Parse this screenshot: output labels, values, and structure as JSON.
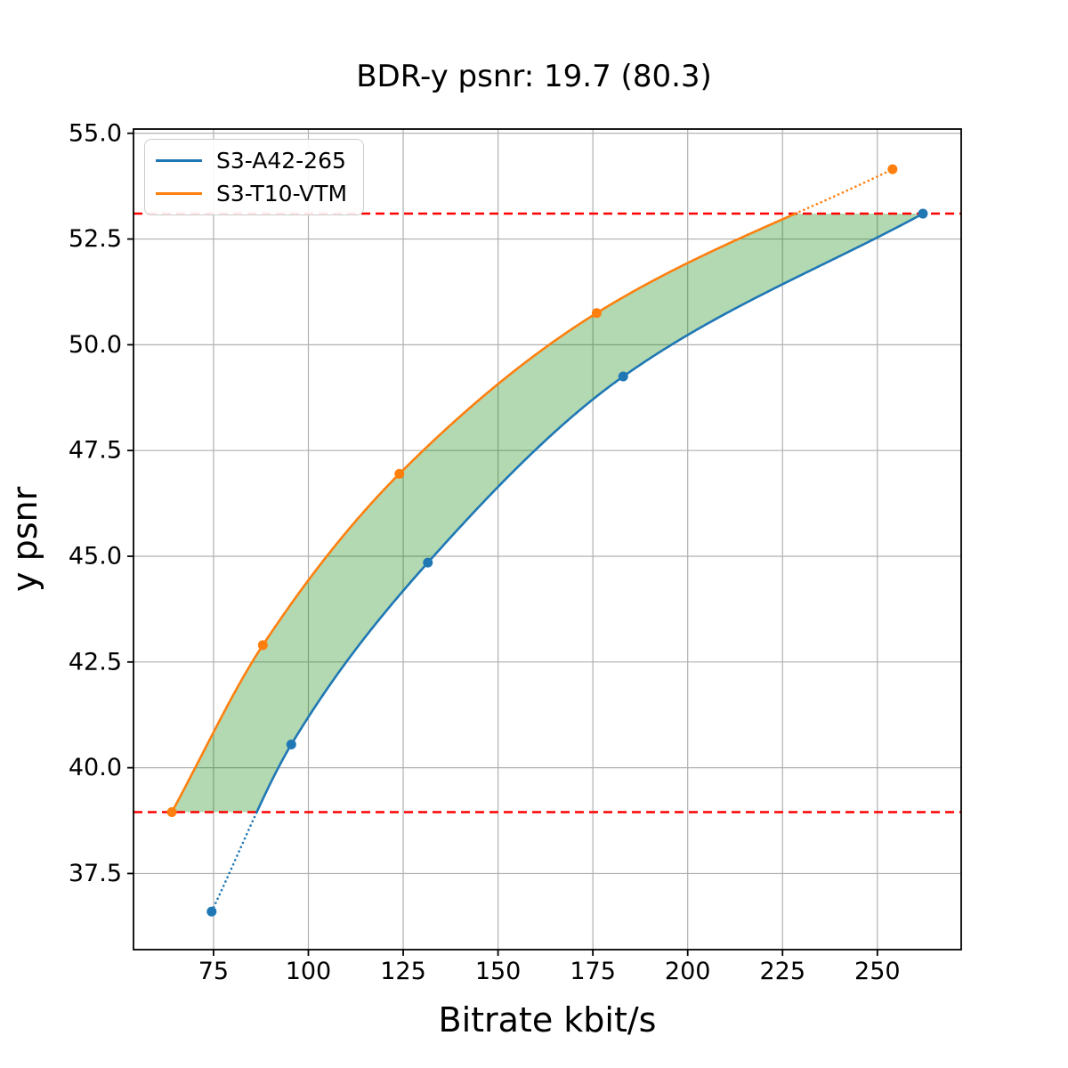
{
  "title": "BDR-y psnr: 19.7 (80.3)",
  "chart_data": {
    "type": "line",
    "title": "BDR-y psnr: 19.7 (80.3)",
    "xlabel": "Bitrate kbit/s",
    "ylabel": "y psnr",
    "xlim": [
      53.9,
      272.1
    ],
    "ylim": [
      35.7,
      55.1
    ],
    "xticks": [
      75,
      100,
      125,
      150,
      175,
      200,
      225,
      250
    ],
    "yticks": [
      37.5,
      40.0,
      42.5,
      45.0,
      47.5,
      50.0,
      52.5,
      55.0
    ],
    "grid": true,
    "grid_color": "#b0b0b0",
    "background": "#ffffff",
    "legend_position": "upper-left",
    "series": [
      {
        "name": "S3-A42-265",
        "color": "#1f77b4",
        "x": [
          74.5,
          95.5,
          131.5,
          183.0,
          262.0
        ],
        "y": [
          36.6,
          40.55,
          44.85,
          49.25,
          53.1
        ]
      },
      {
        "name": "S3-T10-VTM",
        "color": "#ff7f0e",
        "x": [
          64.0,
          88.0,
          124.0,
          176.0,
          254.0
        ],
        "y": [
          38.95,
          42.9,
          46.95,
          50.75,
          54.15
        ]
      }
    ],
    "overlap_lines": {
      "color": "#ff0000",
      "style": "dashed",
      "lower": 38.95,
      "upper": 53.1
    },
    "shaded_region": {
      "color": "#008000",
      "opacity": 0.3,
      "between": [
        "S3-T10-VTM",
        "S3-A42-265"
      ],
      "y_range": [
        38.95,
        53.1
      ]
    }
  }
}
